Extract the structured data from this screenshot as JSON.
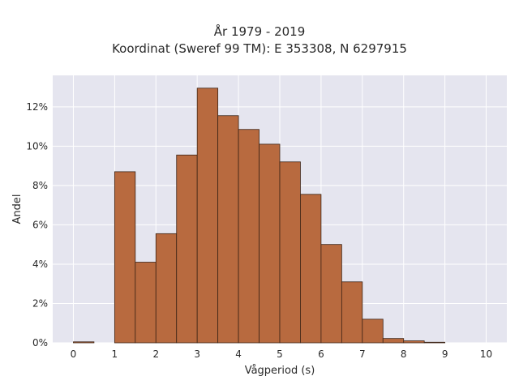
{
  "chart_data": {
    "type": "bar",
    "title": "År 1979 - 2019",
    "subtitle": "Koordinat (Sweref 99 TM): E 353308, N 6297915",
    "xlabel": "Vågperiod (s)",
    "ylabel": "Andel",
    "bin_width": 0.5,
    "bin_starts": [
      0,
      0.5,
      1,
      1.5,
      2,
      2.5,
      3,
      3.5,
      4,
      4.5,
      5,
      5.5,
      6,
      6.5,
      7,
      7.5,
      8,
      8.5,
      9,
      9.5
    ],
    "values": [
      0.05,
      0,
      8.7,
      4.1,
      5.55,
      9.55,
      12.95,
      11.55,
      10.85,
      10.1,
      9.2,
      7.55,
      5.0,
      3.1,
      1.2,
      0.22,
      0.1,
      0.03,
      0,
      0
    ],
    "xlim": [
      -0.5,
      10.5
    ],
    "ylim": [
      0,
      13.6
    ],
    "x_ticks": [
      "0",
      "1",
      "2",
      "3",
      "4",
      "5",
      "6",
      "7",
      "8",
      "9",
      "10"
    ],
    "y_ticks": [
      "0%",
      "2%",
      "4%",
      "6%",
      "8%",
      "10%",
      "12%"
    ],
    "grid": true,
    "colors": {
      "bar_fill": "#b86a3f",
      "bar_edge": "#3d2416",
      "plot_bg": "#e5e5ef",
      "grid": "#ffffff"
    }
  }
}
